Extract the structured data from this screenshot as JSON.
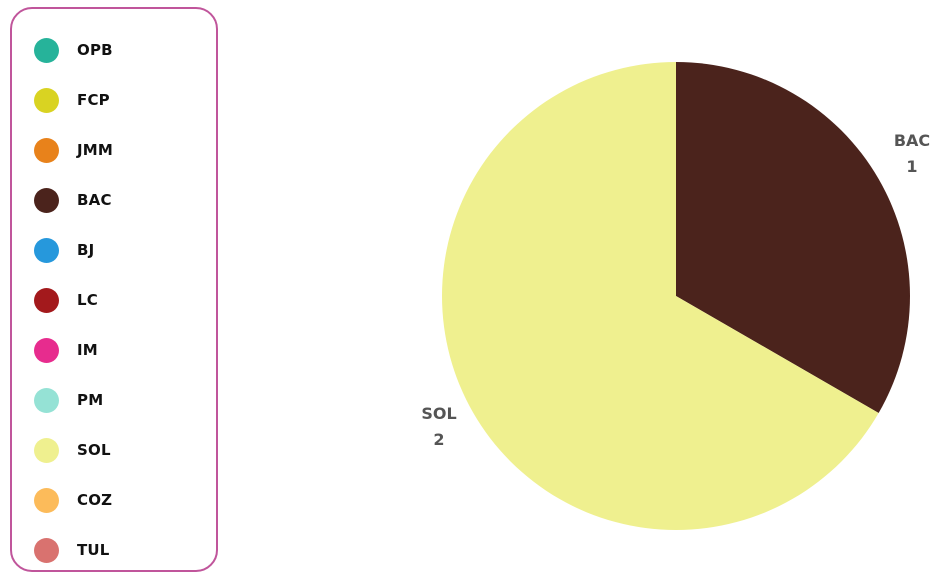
{
  "legend": {
    "items": [
      {
        "label": "OPB",
        "color": "#26b39a"
      },
      {
        "label": "FCP",
        "color": "#d9d322"
      },
      {
        "label": "JMM",
        "color": "#e8821b"
      },
      {
        "label": "BAC",
        "color": "#4b231c"
      },
      {
        "label": "BJ",
        "color": "#2698dc"
      },
      {
        "label": "LC",
        "color": "#a3191c"
      },
      {
        "label": "IM",
        "color": "#e72c8e"
      },
      {
        "label": "PM",
        "color": "#95e2d5"
      },
      {
        "label": "SOL",
        "color": "#eff08f"
      },
      {
        "label": "COZ",
        "color": "#fcbb5a"
      },
      {
        "label": "TUL",
        "color": "#d9726f"
      }
    ]
  },
  "chart_data": {
    "type": "pie",
    "legend_position": "left",
    "slices": [
      {
        "label": "BAC",
        "value": 1,
        "color": "#4b231c"
      },
      {
        "label": "SOL",
        "value": 2,
        "color": "#eff08f"
      }
    ]
  }
}
